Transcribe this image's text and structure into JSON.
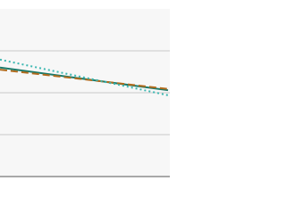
{
  "chart_data": {
    "type": "line",
    "x": [
      0,
      1
    ],
    "xlim": [
      0,
      1
    ],
    "ylim": [
      0,
      4
    ],
    "yticks": [
      1,
      2,
      3
    ],
    "grid": true,
    "series": [
      {
        "color": "#1a7a6a",
        "dash": "solid",
        "values": [
          2.6,
          2.06
        ]
      },
      {
        "color": "#b06a1c",
        "dash": "dashed",
        "values": [
          2.55,
          2.09
        ]
      },
      {
        "color": "#3cb8b2",
        "dash": "dotted",
        "values": [
          2.79,
          1.94
        ]
      }
    ]
  }
}
